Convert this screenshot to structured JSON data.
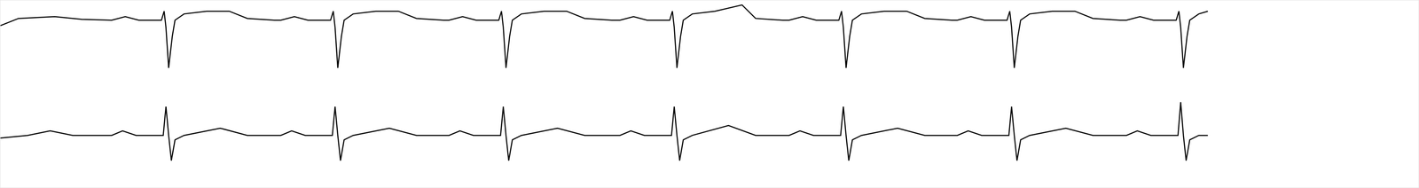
{
  "chart_data": {
    "type": "line",
    "xlim": [
      0,
      1568
    ],
    "ylim": [
      0,
      208
    ],
    "xticks": [],
    "yticks": [],
    "grid": false,
    "tick_labels": false,
    "series": [
      {
        "color": "#000000",
        "x": [
          0,
          20,
          60,
          90,
          123,
          138,
          153,
          178,
          181,
          183,
          186,
          190,
          193,
          203,
          228,
          253,
          273,
          303,
          310,
          325,
          340,
          365,
          368,
          370,
          373,
          377,
          380,
          390,
          415,
          440,
          460,
          490,
          496,
          511,
          526,
          551,
          554,
          556,
          559,
          563,
          566,
          576,
          601,
          626,
          646,
          676,
          685,
          700,
          715,
          740,
          743,
          745,
          748,
          752,
          755,
          765,
          790,
          820,
          835,
          865,
          872,
          887,
          902,
          927,
          930,
          932,
          935,
          939,
          942,
          952,
          977,
          1002,
          1022,
          1052,
          1058,
          1073,
          1088,
          1113,
          1116,
          1118,
          1121,
          1125,
          1128,
          1138,
          1163,
          1188,
          1208,
          1238,
          1245,
          1260,
          1275,
          1300,
          1303,
          1305,
          1308,
          1312,
          1315,
          1325,
          1335
        ],
        "values": [
          180,
          188,
          190,
          187,
          186,
          190,
          186,
          186,
          196,
          178,
          133,
          168,
          186,
          193,
          196,
          196,
          188,
          186,
          186,
          190,
          186,
          186,
          196,
          178,
          133,
          168,
          186,
          193,
          196,
          196,
          188,
          186,
          186,
          190,
          186,
          186,
          196,
          178,
          133,
          168,
          186,
          193,
          196,
          196,
          188,
          186,
          186,
          190,
          186,
          186,
          196,
          178,
          133,
          168,
          186,
          193,
          196,
          203,
          188,
          186,
          186,
          190,
          186,
          186,
          196,
          178,
          133,
          168,
          186,
          193,
          196,
          196,
          188,
          186,
          186,
          190,
          186,
          186,
          196,
          178,
          133,
          168,
          186,
          193,
          196,
          196,
          188,
          186,
          186,
          190,
          186,
          186,
          196,
          178,
          133,
          168,
          186,
          193,
          196
        ]
      },
      {
        "color": "#000000",
        "x": [
          0,
          30,
          55,
          80,
          123,
          135,
          150,
          180,
          183,
          186,
          189,
          193,
          203,
          243,
          273,
          310,
          322,
          337,
          367,
          370,
          373,
          376,
          380,
          390,
          430,
          460,
          496,
          508,
          523,
          553,
          556,
          559,
          562,
          566,
          576,
          616,
          646,
          685,
          697,
          712,
          742,
          745,
          748,
          751,
          755,
          765,
          805,
          835,
          872,
          884,
          899,
          929,
          932,
          935,
          938,
          942,
          952,
          992,
          1022,
          1058,
          1070,
          1085,
          1115,
          1118,
          1121,
          1124,
          1128,
          1138,
          1178,
          1208,
          1245,
          1257,
          1272,
          1302,
          1305,
          1308,
          1311,
          1315,
          1325,
          1335
        ],
        "values": [
          55,
          58,
          63,
          58,
          58,
          63,
          58,
          58,
          90,
          58,
          30,
          53,
          58,
          66,
          58,
          58,
          63,
          58,
          58,
          90,
          58,
          30,
          53,
          58,
          66,
          58,
          58,
          63,
          58,
          58,
          90,
          58,
          30,
          53,
          58,
          66,
          58,
          58,
          63,
          58,
          58,
          90,
          58,
          30,
          53,
          58,
          69,
          58,
          58,
          63,
          58,
          58,
          90,
          58,
          30,
          53,
          58,
          66,
          58,
          58,
          63,
          58,
          58,
          90,
          58,
          30,
          53,
          58,
          66,
          58,
          58,
          63,
          58,
          58,
          95,
          58,
          30,
          53,
          58,
          58
        ]
      }
    ]
  }
}
